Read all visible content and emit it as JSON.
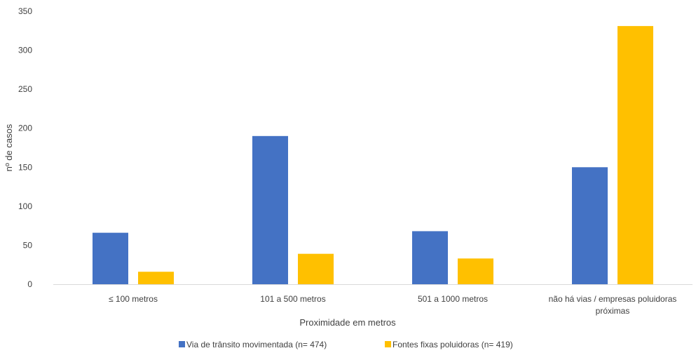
{
  "chart_data": {
    "type": "bar",
    "title": "",
    "xlabel": "Proximidade em metros",
    "ylabel": "nº de casos",
    "categories": [
      [
        "≤ 100 metros"
      ],
      [
        "101 a 500 metros"
      ],
      [
        "501 a 1000 metros"
      ],
      [
        "não há vias / empresas poluidoras",
        "próximas"
      ]
    ],
    "series": [
      {
        "name": "Via de trânsito movimentada (n= 474)",
        "color": "#4472C4",
        "values": [
          66,
          190,
          68,
          150
        ]
      },
      {
        "name": "Fontes fixas poluidoras (n= 419)",
        "color": "#FFC000",
        "values": [
          16,
          39,
          33,
          331
        ]
      }
    ],
    "ylim": [
      0,
      350
    ],
    "yticks": [
      0,
      50,
      100,
      150,
      200,
      250,
      300,
      350
    ],
    "grid": false,
    "legend_position": "bottom"
  }
}
